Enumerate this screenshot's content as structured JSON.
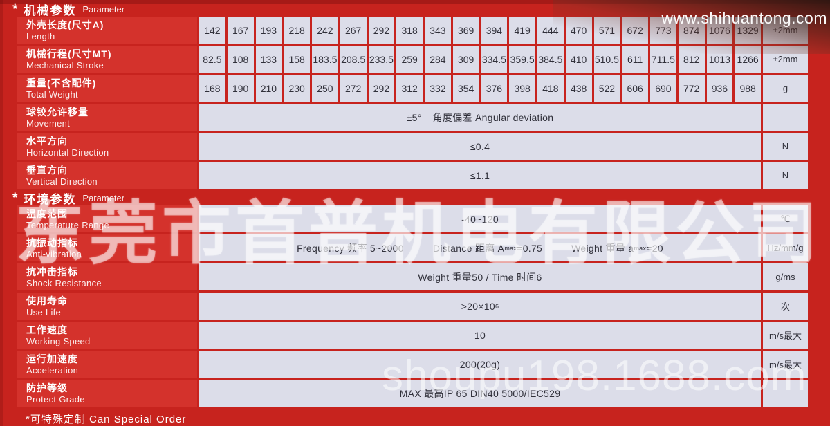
{
  "watermarks": {
    "top_right": "www.shihuantong.com",
    "middle": "东莞市首普机电有限公司",
    "bottom_right": "shoupu198.1688.com"
  },
  "colors": {
    "background_red": "#c7231e",
    "label_cell_red": "#d4322c",
    "value_cell_bg": "#dcdde9",
    "value_text": "#30303a",
    "header_text": "#ffffff"
  },
  "footer": {
    "note": "*可特殊定制 Can Special Order"
  },
  "sections": {
    "mechanical": {
      "star": "*",
      "title_cn": "机械参数",
      "title_en": "Parameter",
      "rows": [
        {
          "label_cn": "外壳长度(尺寸A)",
          "label_en": "Length",
          "type": "cells",
          "values": [
            "142",
            "167",
            "193",
            "218",
            "242",
            "267",
            "292",
            "318",
            "343",
            "369",
            "394",
            "419",
            "444",
            "470",
            "571",
            "672",
            "773",
            "874",
            "1076",
            "1329"
          ],
          "unit": "±2mm"
        },
        {
          "label_cn": "机械行程(尺寸MT)",
          "label_en": "Mechanical Stroke",
          "type": "cells",
          "values": [
            "82.5",
            "108",
            "133",
            "158",
            "183.5",
            "208.5",
            "233.5",
            "259",
            "284",
            "309",
            "334.5",
            "359.5",
            "384.5",
            "410",
            "510.5",
            "611",
            "711.5",
            "812",
            "1013",
            "1266"
          ],
          "unit": "±2mm"
        },
        {
          "label_cn": "重量(不含配件)",
          "label_en": "Total Weight",
          "type": "cells",
          "values": [
            "168",
            "190",
            "210",
            "230",
            "250",
            "272",
            "292",
            "312",
            "332",
            "354",
            "376",
            "398",
            "418",
            "438",
            "522",
            "606",
            "690",
            "772",
            "936",
            "988"
          ],
          "unit": "g"
        },
        {
          "label_cn": "球铰允许移量",
          "label_en": "Movement",
          "type": "merged",
          "parts": [
            {
              "t": "±5°"
            },
            {
              "gap": 16
            },
            {
              "t": "角度偏差 Angular deviation"
            }
          ],
          "unit": ""
        },
        {
          "label_cn": "水平方向",
          "label_en": "Horizontal Direction",
          "type": "merged",
          "parts": [
            {
              "t": "≤0.4"
            }
          ],
          "unit": "N"
        },
        {
          "label_cn": "垂直方向",
          "label_en": "Vertical Direction",
          "type": "merged",
          "parts": [
            {
              "t": "≤1.1"
            }
          ],
          "unit": "N"
        }
      ]
    },
    "environment": {
      "star": "*",
      "title_cn": "环境参数",
      "title_en": "Parameter",
      "rows": [
        {
          "label_cn": "温度范围",
          "label_en": "Temperature Range",
          "type": "merged",
          "parts": [
            {
              "t": "-40~120"
            }
          ],
          "unit": "℃"
        },
        {
          "label_cn": "抗振动指标",
          "label_en": "Anti-vibration",
          "type": "merged",
          "parts": [
            {
              "t": "Frequency 频率 5~2000"
            },
            {
              "gap": 42
            },
            {
              "t": "Distance 距离 A"
            },
            {
              "sub": "max"
            },
            {
              "t": "=0.75"
            },
            {
              "gap": 42
            },
            {
              "t": "Weight 重量 a"
            },
            {
              "sub": "max"
            },
            {
              "t": "=20"
            }
          ],
          "unit": "Hz/mm/g"
        },
        {
          "label_cn": "抗冲击指标",
          "label_en": "Shock Resistance",
          "type": "merged",
          "parts": [
            {
              "t": "Weight 重量50 / Time 时间6"
            }
          ],
          "unit": "g/ms"
        },
        {
          "label_cn": "使用寿命",
          "label_en": "Use Life",
          "type": "merged",
          "parts": [
            {
              "t": ">20×10"
            },
            {
              "sup": "6"
            }
          ],
          "unit": "次"
        },
        {
          "label_cn": "工作速度",
          "label_en": "Working Speed",
          "type": "merged",
          "parts": [
            {
              "t": "10"
            }
          ],
          "unit": "m/s最大"
        },
        {
          "label_cn": "运行加速度",
          "label_en": "Acceleration",
          "type": "merged",
          "parts": [
            {
              "t": "200(20g)"
            }
          ],
          "unit": "m/s最大"
        },
        {
          "label_cn": "防护等级",
          "label_en": "Protect Grade",
          "type": "merged",
          "parts": [
            {
              "t": "MAX 最高IP 65 DIN40 5000/IEC529"
            }
          ],
          "unit": ""
        }
      ]
    }
  }
}
